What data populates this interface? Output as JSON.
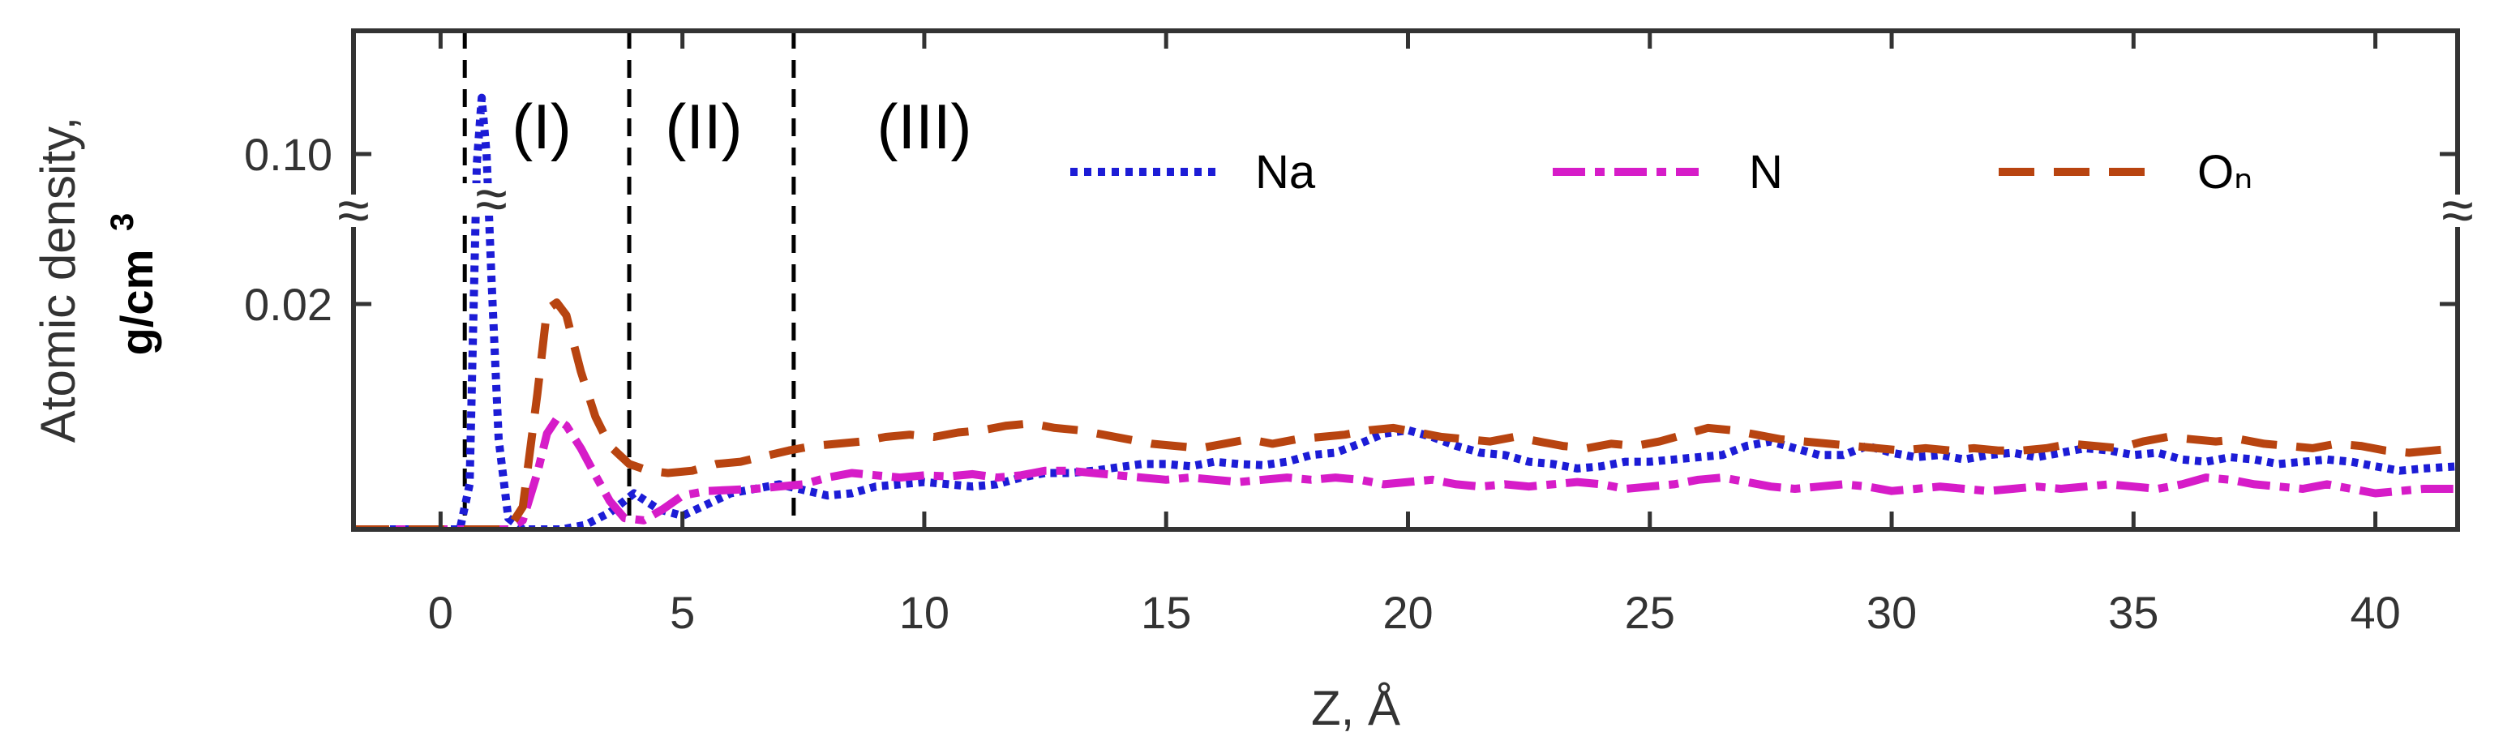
{
  "chart_data": {
    "type": "line",
    "title": "",
    "xlabel": "Z, Å",
    "ylabel_line1": "Atomic density,",
    "ylabel_line2": "g/cm",
    "ylabel_sup": "3",
    "xlim": [
      -1.8,
      41.7
    ],
    "xticks": [
      0,
      5,
      10,
      15,
      20,
      25,
      30,
      35,
      40
    ],
    "yticks": [
      {
        "value": 0.1,
        "label": "0.10"
      },
      {
        "value": 0.02,
        "label": "0.02"
      }
    ],
    "axis_break": "≈",
    "regions": [
      {
        "label": "(I)",
        "z_start": 0.5,
        "z_end": 3.9
      },
      {
        "label": "(II)",
        "z_start": 3.9,
        "z_end": 7.3
      },
      {
        "label": "(III)",
        "z_start": 7.3
      }
    ],
    "legend": {
      "placement": "top-right"
    },
    "series": [
      {
        "name": "Na",
        "color": "#1c1cd6",
        "style": "dotted",
        "points": [
          [
            -1.8,
            0
          ],
          [
            0.4,
            0
          ],
          [
            0.6,
            0.004
          ],
          [
            0.75,
            0.095
          ],
          [
            0.85,
            0.13
          ],
          [
            0.95,
            0.1
          ],
          [
            1.05,
            0.035
          ],
          [
            1.2,
            0.008
          ],
          [
            1.4,
            0.001
          ],
          [
            1.7,
            0
          ],
          [
            2.5,
            0
          ],
          [
            3.0,
            0.0004
          ],
          [
            3.5,
            0.0015
          ],
          [
            4.0,
            0.0032
          ],
          [
            4.5,
            0.0018
          ],
          [
            5.0,
            0.0012
          ],
          [
            5.5,
            0.0022
          ],
          [
            6.0,
            0.0032
          ],
          [
            6.5,
            0.0036
          ],
          [
            7.0,
            0.004
          ],
          [
            7.5,
            0.0035
          ],
          [
            8.0,
            0.003
          ],
          [
            8.5,
            0.0032
          ],
          [
            9.0,
            0.0038
          ],
          [
            9.5,
            0.004
          ],
          [
            10.0,
            0.0042
          ],
          [
            10.5,
            0.004
          ],
          [
            11.0,
            0.0038
          ],
          [
            11.5,
            0.004
          ],
          [
            12.0,
            0.0046
          ],
          [
            12.5,
            0.005
          ],
          [
            13.0,
            0.005
          ],
          [
            13.5,
            0.0052
          ],
          [
            14.0,
            0.0055
          ],
          [
            14.5,
            0.0058
          ],
          [
            15.0,
            0.0058
          ],
          [
            15.5,
            0.0056
          ],
          [
            16.0,
            0.006
          ],
          [
            16.5,
            0.0058
          ],
          [
            17.0,
            0.0057
          ],
          [
            17.5,
            0.006
          ],
          [
            18.0,
            0.0066
          ],
          [
            18.5,
            0.0068
          ],
          [
            19.0,
            0.0076
          ],
          [
            19.5,
            0.0085
          ],
          [
            20.0,
            0.0088
          ],
          [
            20.5,
            0.0082
          ],
          [
            21.0,
            0.0074
          ],
          [
            21.5,
            0.0068
          ],
          [
            22.0,
            0.0066
          ],
          [
            22.5,
            0.006
          ],
          [
            23.0,
            0.0058
          ],
          [
            23.5,
            0.0054
          ],
          [
            24.0,
            0.0056
          ],
          [
            24.5,
            0.006
          ],
          [
            25.0,
            0.006
          ],
          [
            25.5,
            0.0062
          ],
          [
            26.0,
            0.0064
          ],
          [
            26.5,
            0.0066
          ],
          [
            27.0,
            0.0074
          ],
          [
            27.5,
            0.0078
          ],
          [
            28.0,
            0.0072
          ],
          [
            28.5,
            0.0066
          ],
          [
            29.0,
            0.0066
          ],
          [
            29.5,
            0.0074
          ],
          [
            30.0,
            0.0068
          ],
          [
            30.5,
            0.0064
          ],
          [
            31.0,
            0.0066
          ],
          [
            31.5,
            0.0062
          ],
          [
            32.0,
            0.0066
          ],
          [
            32.5,
            0.0068
          ],
          [
            33.0,
            0.0064
          ],
          [
            33.5,
            0.0068
          ],
          [
            34.0,
            0.0072
          ],
          [
            34.5,
            0.007
          ],
          [
            35.0,
            0.0066
          ],
          [
            35.5,
            0.0068
          ],
          [
            36.0,
            0.0062
          ],
          [
            36.5,
            0.006
          ],
          [
            37.0,
            0.0064
          ],
          [
            37.5,
            0.0062
          ],
          [
            38.0,
            0.0058
          ],
          [
            38.5,
            0.006
          ],
          [
            39.0,
            0.0062
          ],
          [
            39.5,
            0.006
          ],
          [
            40.0,
            0.0056
          ],
          [
            40.5,
            0.0052
          ],
          [
            41.0,
            0.0054
          ],
          [
            41.7,
            0.0056
          ]
        ]
      },
      {
        "name": "N",
        "color": "#d61cc8",
        "style": "dash-dot",
        "points": [
          [
            -1.8,
            0
          ],
          [
            1.4,
            0
          ],
          [
            1.7,
            0.0008
          ],
          [
            2.0,
            0.005
          ],
          [
            2.2,
            0.0085
          ],
          [
            2.4,
            0.0098
          ],
          [
            2.6,
            0.0092
          ],
          [
            2.9,
            0.0072
          ],
          [
            3.2,
            0.0048
          ],
          [
            3.5,
            0.0025
          ],
          [
            3.8,
            0.001
          ],
          [
            4.2,
            0.0008
          ],
          [
            4.6,
            0.0018
          ],
          [
            5.0,
            0.003
          ],
          [
            5.5,
            0.0034
          ],
          [
            6.0,
            0.0035
          ],
          [
            6.5,
            0.0036
          ],
          [
            7.0,
            0.0038
          ],
          [
            7.5,
            0.004
          ],
          [
            8.0,
            0.0046
          ],
          [
            8.5,
            0.005
          ],
          [
            9.0,
            0.0048
          ],
          [
            9.5,
            0.0046
          ],
          [
            10.0,
            0.0048
          ],
          [
            10.5,
            0.0047
          ],
          [
            11.0,
            0.0049
          ],
          [
            11.5,
            0.0046
          ],
          [
            12.0,
            0.0048
          ],
          [
            12.5,
            0.0052
          ],
          [
            13.0,
            0.0052
          ],
          [
            13.5,
            0.005
          ],
          [
            14.0,
            0.0048
          ],
          [
            14.5,
            0.0046
          ],
          [
            15.0,
            0.0044
          ],
          [
            15.5,
            0.0046
          ],
          [
            16.0,
            0.0044
          ],
          [
            16.5,
            0.0042
          ],
          [
            17.0,
            0.0044
          ],
          [
            17.5,
            0.0046
          ],
          [
            18.0,
            0.0044
          ],
          [
            18.5,
            0.0046
          ],
          [
            19.0,
            0.0044
          ],
          [
            19.5,
            0.004
          ],
          [
            20.0,
            0.0042
          ],
          [
            20.5,
            0.0044
          ],
          [
            21.0,
            0.004
          ],
          [
            21.5,
            0.0038
          ],
          [
            22.0,
            0.004
          ],
          [
            22.5,
            0.0038
          ],
          [
            23.0,
            0.004
          ],
          [
            23.5,
            0.0042
          ],
          [
            24.0,
            0.004
          ],
          [
            24.5,
            0.0036
          ],
          [
            25.0,
            0.0038
          ],
          [
            25.5,
            0.004
          ],
          [
            26.0,
            0.0044
          ],
          [
            26.5,
            0.0046
          ],
          [
            27.0,
            0.0042
          ],
          [
            27.5,
            0.0038
          ],
          [
            28.0,
            0.0036
          ],
          [
            28.5,
            0.0038
          ],
          [
            29.0,
            0.004
          ],
          [
            29.5,
            0.0038
          ],
          [
            30.0,
            0.0034
          ],
          [
            30.5,
            0.0036
          ],
          [
            31.0,
            0.0038
          ],
          [
            31.5,
            0.0036
          ],
          [
            32.0,
            0.0034
          ],
          [
            32.5,
            0.0036
          ],
          [
            33.0,
            0.0038
          ],
          [
            33.5,
            0.0036
          ],
          [
            34.0,
            0.0038
          ],
          [
            34.5,
            0.004
          ],
          [
            35.0,
            0.0038
          ],
          [
            35.5,
            0.0036
          ],
          [
            36.0,
            0.004
          ],
          [
            36.5,
            0.0046
          ],
          [
            37.0,
            0.0044
          ],
          [
            37.5,
            0.004
          ],
          [
            38.0,
            0.0038
          ],
          [
            38.5,
            0.0036
          ],
          [
            39.0,
            0.004
          ],
          [
            39.5,
            0.0036
          ],
          [
            40.0,
            0.0032
          ],
          [
            40.5,
            0.0034
          ],
          [
            41.0,
            0.0036
          ],
          [
            41.7,
            0.0036
          ]
        ]
      },
      {
        "name": "Oₙ",
        "color": "#b84410",
        "style": "dashed",
        "points": [
          [
            -1.8,
            0
          ],
          [
            1.4,
            0
          ],
          [
            1.7,
            0.002
          ],
          [
            2.0,
            0.012
          ],
          [
            2.2,
            0.0195
          ],
          [
            2.4,
            0.0208
          ],
          [
            2.6,
            0.019
          ],
          [
            2.9,
            0.014
          ],
          [
            3.2,
            0.01
          ],
          [
            3.5,
            0.0074
          ],
          [
            3.9,
            0.0058
          ],
          [
            4.3,
            0.0052
          ],
          [
            4.7,
            0.005
          ],
          [
            5.2,
            0.0052
          ],
          [
            5.7,
            0.0058
          ],
          [
            6.2,
            0.006
          ],
          [
            6.8,
            0.0066
          ],
          [
            7.2,
            0.007
          ],
          [
            7.7,
            0.0074
          ],
          [
            8.2,
            0.0076
          ],
          [
            8.7,
            0.0078
          ],
          [
            9.2,
            0.0082
          ],
          [
            9.7,
            0.0084
          ],
          [
            10.2,
            0.0082
          ],
          [
            10.7,
            0.0086
          ],
          [
            11.2,
            0.0088
          ],
          [
            11.7,
            0.0092
          ],
          [
            12.2,
            0.0094
          ],
          [
            12.7,
            0.009
          ],
          [
            13.2,
            0.0088
          ],
          [
            13.7,
            0.0084
          ],
          [
            14.2,
            0.008
          ],
          [
            14.7,
            0.0076
          ],
          [
            15.2,
            0.0074
          ],
          [
            15.7,
            0.0072
          ],
          [
            16.2,
            0.0076
          ],
          [
            16.7,
            0.008
          ],
          [
            17.2,
            0.0076
          ],
          [
            17.7,
            0.008
          ],
          [
            18.2,
            0.0082
          ],
          [
            18.7,
            0.0084
          ],
          [
            19.2,
            0.0088
          ],
          [
            19.7,
            0.009
          ],
          [
            20.2,
            0.0086
          ],
          [
            20.7,
            0.0082
          ],
          [
            21.2,
            0.008
          ],
          [
            21.7,
            0.0078
          ],
          [
            22.2,
            0.0082
          ],
          [
            22.7,
            0.0078
          ],
          [
            23.2,
            0.0074
          ],
          [
            23.7,
            0.0072
          ],
          [
            24.2,
            0.0076
          ],
          [
            24.7,
            0.0074
          ],
          [
            25.2,
            0.0078
          ],
          [
            25.7,
            0.0084
          ],
          [
            26.2,
            0.009
          ],
          [
            26.7,
            0.0088
          ],
          [
            27.2,
            0.0084
          ],
          [
            27.7,
            0.008
          ],
          [
            28.2,
            0.0078
          ],
          [
            28.7,
            0.0076
          ],
          [
            29.2,
            0.0074
          ],
          [
            29.7,
            0.0072
          ],
          [
            30.2,
            0.007
          ],
          [
            30.7,
            0.0072
          ],
          [
            31.2,
            0.007
          ],
          [
            31.7,
            0.0072
          ],
          [
            32.2,
            0.007
          ],
          [
            32.7,
            0.007
          ],
          [
            33.2,
            0.0072
          ],
          [
            33.7,
            0.0076
          ],
          [
            34.2,
            0.0074
          ],
          [
            34.7,
            0.0072
          ],
          [
            35.2,
            0.0078
          ],
          [
            35.7,
            0.0082
          ],
          [
            36.2,
            0.008
          ],
          [
            36.7,
            0.0078
          ],
          [
            37.2,
            0.008
          ],
          [
            37.7,
            0.0076
          ],
          [
            38.2,
            0.0074
          ],
          [
            38.7,
            0.0072
          ],
          [
            39.2,
            0.0076
          ],
          [
            39.7,
            0.0074
          ],
          [
            40.2,
            0.007
          ],
          [
            40.7,
            0.0068
          ],
          [
            41.2,
            0.007
          ],
          [
            41.7,
            0.0072
          ]
        ]
      }
    ]
  }
}
